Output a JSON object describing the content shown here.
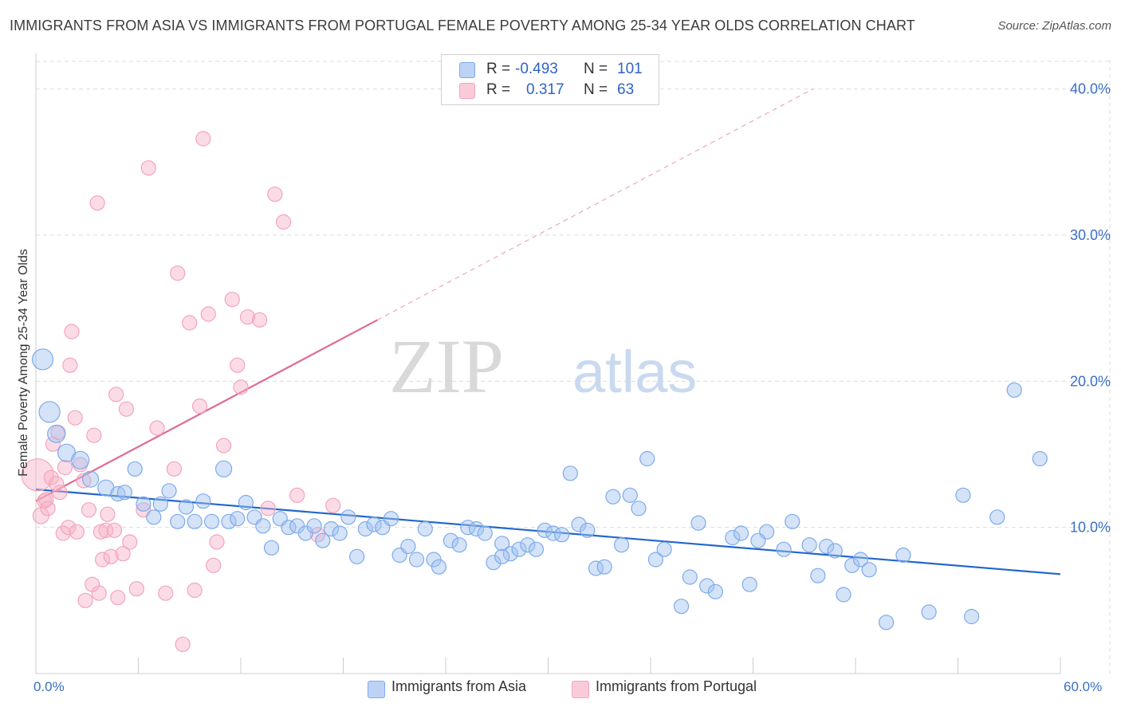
{
  "title": "IMMIGRANTS FROM ASIA VS IMMIGRANTS FROM PORTUGAL FEMALE POVERTY AMONG 25-34 YEAR OLDS CORRELATION CHART",
  "source": "Source: ZipAtlas.com",
  "watermark": {
    "zip": "ZIP",
    "atlas": "atlas"
  },
  "legend": {
    "asia": {
      "r_label": "R =",
      "r_value": "-0.493",
      "n_label": "N =",
      "n_value": "101",
      "color": "#7eaaeb"
    },
    "portugal": {
      "r_label": "R =",
      "r_value": "0.317",
      "n_label": "N =",
      "n_value": "63",
      "color": "#f4a3bb"
    }
  },
  "bottom_legend": {
    "asia": "Immigrants from Asia",
    "portugal": "Immigrants from Portugal"
  },
  "chart_data": {
    "type": "scatter",
    "title": "IMMIGRANTS FROM ASIA VS IMMIGRANTS FROM PORTUGAL FEMALE POVERTY AMONG 25-34 YEAR OLDS CORRELATION CHART",
    "xlabel": "",
    "ylabel": "Female Poverty Among 25-34 Year Olds",
    "xlim": [
      0,
      60
    ],
    "ylim": [
      0,
      42
    ],
    "x_tick_labels": [
      "0.0%",
      "60.0%"
    ],
    "y_ticks": [
      10,
      20,
      30,
      40
    ],
    "y_tick_labels": [
      "10.0%",
      "20.0%",
      "30.0%",
      "40.0%"
    ],
    "grid": true,
    "legend_position": "top-center",
    "series": [
      {
        "name": "Immigrants from Asia",
        "color": "#7eaaeb",
        "line_color": "#2266cc",
        "trend": {
          "x": [
            0,
            60
          ],
          "y": [
            12.6,
            6.8
          ],
          "solid_to": 60
        },
        "points": [
          [
            0.4,
            21.5,
            13
          ],
          [
            0.8,
            17.9,
            13
          ],
          [
            1.2,
            16.4,
            11
          ],
          [
            1.8,
            15.1,
            11
          ],
          [
            2.6,
            14.6,
            11
          ],
          [
            3.2,
            13.3,
            10
          ],
          [
            4.1,
            12.7,
            10
          ],
          [
            4.8,
            12.3,
            9
          ],
          [
            5.2,
            12.4,
            9
          ],
          [
            5.8,
            14.0,
            9
          ],
          [
            6.3,
            11.6,
            9
          ],
          [
            6.9,
            10.7,
            9
          ],
          [
            7.3,
            11.6,
            9
          ],
          [
            7.8,
            12.5,
            9
          ],
          [
            8.3,
            10.4,
            9
          ],
          [
            8.8,
            11.4,
            9
          ],
          [
            9.3,
            10.4,
            9
          ],
          [
            9.8,
            11.8,
            9
          ],
          [
            10.3,
            10.4,
            9
          ],
          [
            11.0,
            14.0,
            10
          ],
          [
            11.3,
            10.4,
            9
          ],
          [
            11.8,
            10.6,
            9
          ],
          [
            12.3,
            11.7,
            9
          ],
          [
            12.8,
            10.7,
            9
          ],
          [
            13.3,
            10.1,
            9
          ],
          [
            13.8,
            8.6,
            9
          ],
          [
            14.3,
            10.6,
            9
          ],
          [
            14.8,
            10.0,
            9
          ],
          [
            15.3,
            10.1,
            9
          ],
          [
            15.8,
            9.6,
            9
          ],
          [
            16.3,
            10.1,
            9
          ],
          [
            16.8,
            9.1,
            9
          ],
          [
            17.3,
            9.9,
            9
          ],
          [
            17.8,
            9.6,
            9
          ],
          [
            18.3,
            10.7,
            9
          ],
          [
            18.8,
            8.0,
            9
          ],
          [
            19.3,
            9.9,
            9
          ],
          [
            19.8,
            10.2,
            9
          ],
          [
            20.3,
            10.0,
            9
          ],
          [
            20.8,
            10.6,
            9
          ],
          [
            21.3,
            8.1,
            9
          ],
          [
            21.8,
            8.7,
            9
          ],
          [
            22.3,
            7.8,
            9
          ],
          [
            22.8,
            9.9,
            9
          ],
          [
            23.3,
            7.8,
            9
          ],
          [
            23.6,
            7.3,
            9
          ],
          [
            24.3,
            9.1,
            9
          ],
          [
            24.8,
            8.8,
            9
          ],
          [
            25.3,
            10.0,
            9
          ],
          [
            25.8,
            9.9,
            9
          ],
          [
            26.3,
            9.6,
            9
          ],
          [
            26.8,
            7.6,
            9
          ],
          [
            27.3,
            8.9,
            9
          ],
          [
            27.8,
            8.2,
            9
          ],
          [
            28.3,
            8.5,
            9
          ],
          [
            28.8,
            8.8,
            9
          ],
          [
            29.3,
            8.5,
            9
          ],
          [
            29.8,
            9.8,
            9
          ],
          [
            30.3,
            9.6,
            9
          ],
          [
            30.8,
            9.5,
            9
          ],
          [
            31.3,
            13.7,
            9
          ],
          [
            31.8,
            10.2,
            9
          ],
          [
            32.3,
            9.8,
            9
          ],
          [
            32.8,
            7.2,
            9
          ],
          [
            33.3,
            7.3,
            9
          ],
          [
            33.8,
            12.1,
            9
          ],
          [
            34.3,
            8.8,
            9
          ],
          [
            34.8,
            12.2,
            9
          ],
          [
            35.3,
            11.3,
            9
          ],
          [
            35.8,
            14.7,
            9
          ],
          [
            36.3,
            7.8,
            9
          ],
          [
            36.8,
            8.5,
            9
          ],
          [
            37.8,
            4.6,
            9
          ],
          [
            38.3,
            6.6,
            9
          ],
          [
            38.8,
            10.3,
            9
          ],
          [
            39.3,
            6.0,
            9
          ],
          [
            39.8,
            5.6,
            9
          ],
          [
            40.8,
            9.3,
            9
          ],
          [
            41.3,
            9.6,
            9
          ],
          [
            41.8,
            6.1,
            9
          ],
          [
            42.8,
            9.7,
            9
          ],
          [
            43.8,
            8.5,
            9
          ],
          [
            44.3,
            10.4,
            9
          ],
          [
            45.3,
            8.8,
            9
          ],
          [
            45.8,
            6.7,
            9
          ],
          [
            46.3,
            8.7,
            9
          ],
          [
            46.8,
            8.4,
            9
          ],
          [
            47.3,
            5.4,
            9
          ],
          [
            47.8,
            7.4,
            9
          ],
          [
            48.3,
            7.8,
            9
          ],
          [
            48.8,
            7.1,
            9
          ],
          [
            49.8,
            3.5,
            9
          ],
          [
            50.8,
            8.1,
            9
          ],
          [
            52.3,
            4.2,
            9
          ],
          [
            54.3,
            12.2,
            9
          ],
          [
            54.8,
            3.9,
            9
          ],
          [
            56.3,
            10.7,
            9
          ],
          [
            57.3,
            19.4,
            9
          ],
          [
            58.8,
            14.7,
            9
          ],
          [
            27.3,
            8.0,
            9
          ],
          [
            42.3,
            9.1,
            9
          ]
        ]
      },
      {
        "name": "Immigrants from Portugal",
        "color": "#f4a3bb",
        "line_color": "#e06a93",
        "trend": {
          "x": [
            0,
            45.5
          ],
          "y": [
            11.8,
            40.0
          ],
          "solid_to": 20
        },
        "points": [
          [
            0.1,
            13.6,
            20
          ],
          [
            0.3,
            10.8,
            10
          ],
          [
            0.5,
            11.8,
            9
          ],
          [
            0.7,
            11.3,
            9
          ],
          [
            0.9,
            13.4,
            9
          ],
          [
            1.0,
            15.7,
            9
          ],
          [
            1.3,
            16.5,
            9
          ],
          [
            1.4,
            12.4,
            9
          ],
          [
            1.6,
            9.6,
            9
          ],
          [
            1.7,
            14.1,
            9
          ],
          [
            1.9,
            10.0,
            9
          ],
          [
            2.0,
            21.1,
            9
          ],
          [
            2.1,
            23.4,
            9
          ],
          [
            2.3,
            17.5,
            9
          ],
          [
            2.6,
            14.3,
            9
          ],
          [
            2.8,
            13.2,
            9
          ],
          [
            2.9,
            5.0,
            9
          ],
          [
            3.1,
            11.2,
            9
          ],
          [
            3.3,
            6.1,
            9
          ],
          [
            3.4,
            16.3,
            9
          ],
          [
            3.6,
            32.2,
            9
          ],
          [
            3.7,
            5.5,
            9
          ],
          [
            3.9,
            7.8,
            9
          ],
          [
            4.1,
            9.8,
            9
          ],
          [
            4.2,
            10.9,
            9
          ],
          [
            4.4,
            8.0,
            9
          ],
          [
            4.7,
            19.1,
            9
          ],
          [
            4.8,
            5.2,
            9
          ],
          [
            5.1,
            8.2,
            9
          ],
          [
            5.3,
            18.1,
            9
          ],
          [
            5.5,
            9.0,
            9
          ],
          [
            5.9,
            5.8,
            9
          ],
          [
            6.3,
            11.2,
            9
          ],
          [
            6.6,
            34.6,
            9
          ],
          [
            7.1,
            16.8,
            9
          ],
          [
            7.6,
            5.5,
            9
          ],
          [
            8.1,
            14.0,
            9
          ],
          [
            8.3,
            27.4,
            9
          ],
          [
            8.6,
            2.0,
            9
          ],
          [
            9.0,
            24.0,
            9
          ],
          [
            9.3,
            5.7,
            9
          ],
          [
            9.6,
            18.3,
            9
          ],
          [
            9.8,
            36.6,
            9
          ],
          [
            10.1,
            24.6,
            9
          ],
          [
            10.4,
            7.4,
            9
          ],
          [
            10.6,
            9.0,
            9
          ],
          [
            11.0,
            15.6,
            9
          ],
          [
            11.5,
            25.6,
            9
          ],
          [
            11.8,
            21.1,
            9
          ],
          [
            12.0,
            19.6,
            9
          ],
          [
            12.4,
            24.4,
            9
          ],
          [
            13.1,
            24.2,
            9
          ],
          [
            13.6,
            11.3,
            9
          ],
          [
            14.0,
            32.8,
            9
          ],
          [
            14.5,
            30.9,
            9
          ],
          [
            15.3,
            12.2,
            9
          ],
          [
            16.5,
            9.5,
            9
          ],
          [
            17.4,
            11.5,
            9
          ],
          [
            1.2,
            13.0,
            9
          ],
          [
            2.4,
            9.7,
            9
          ],
          [
            3.8,
            9.7,
            9
          ],
          [
            0.6,
            11.9,
            9
          ],
          [
            4.6,
            9.8,
            9
          ]
        ]
      }
    ]
  }
}
